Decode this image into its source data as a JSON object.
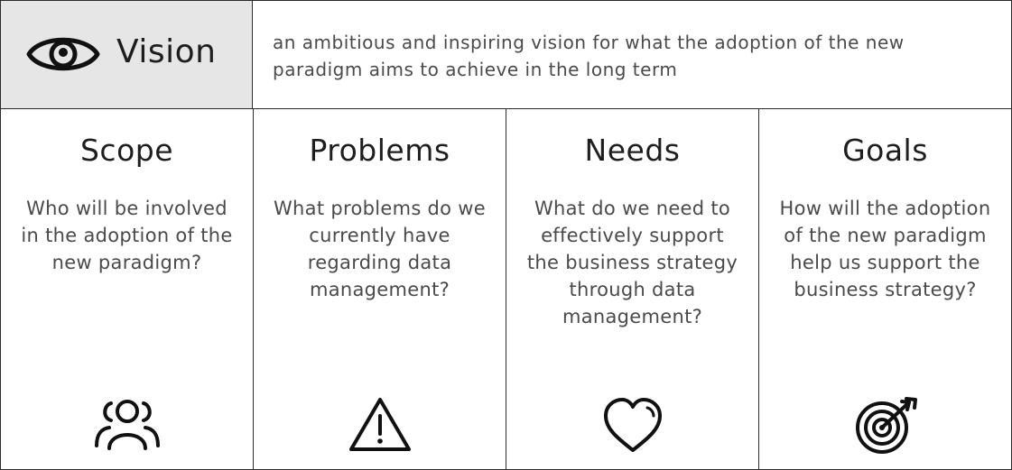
{
  "vision": {
    "title": "Vision",
    "icon": "eye-icon",
    "text": "an ambitious and inspiring vision for what the adoption of the new paradigm aims to achieve in the long term"
  },
  "columns": [
    {
      "title": "Scope",
      "text": "Who will be involved in the adoption of the new paradigm?",
      "icon": "people-icon"
    },
    {
      "title": "Problems",
      "text": "What problems do we currently have regarding data management?",
      "icon": "warning-icon"
    },
    {
      "title": "Needs",
      "text": "What do we need to effectively support the business strategy through data management?",
      "icon": "heart-icon"
    },
    {
      "title": "Goals",
      "text": "How will the adoption of the new paradigm help us support the business strategy?",
      "icon": "target-icon"
    }
  ],
  "colors": {
    "header_bg": "#e6e6e6",
    "border": "#2b2b2b",
    "text": "#4a4a4a",
    "title": "#1e1e1e"
  }
}
